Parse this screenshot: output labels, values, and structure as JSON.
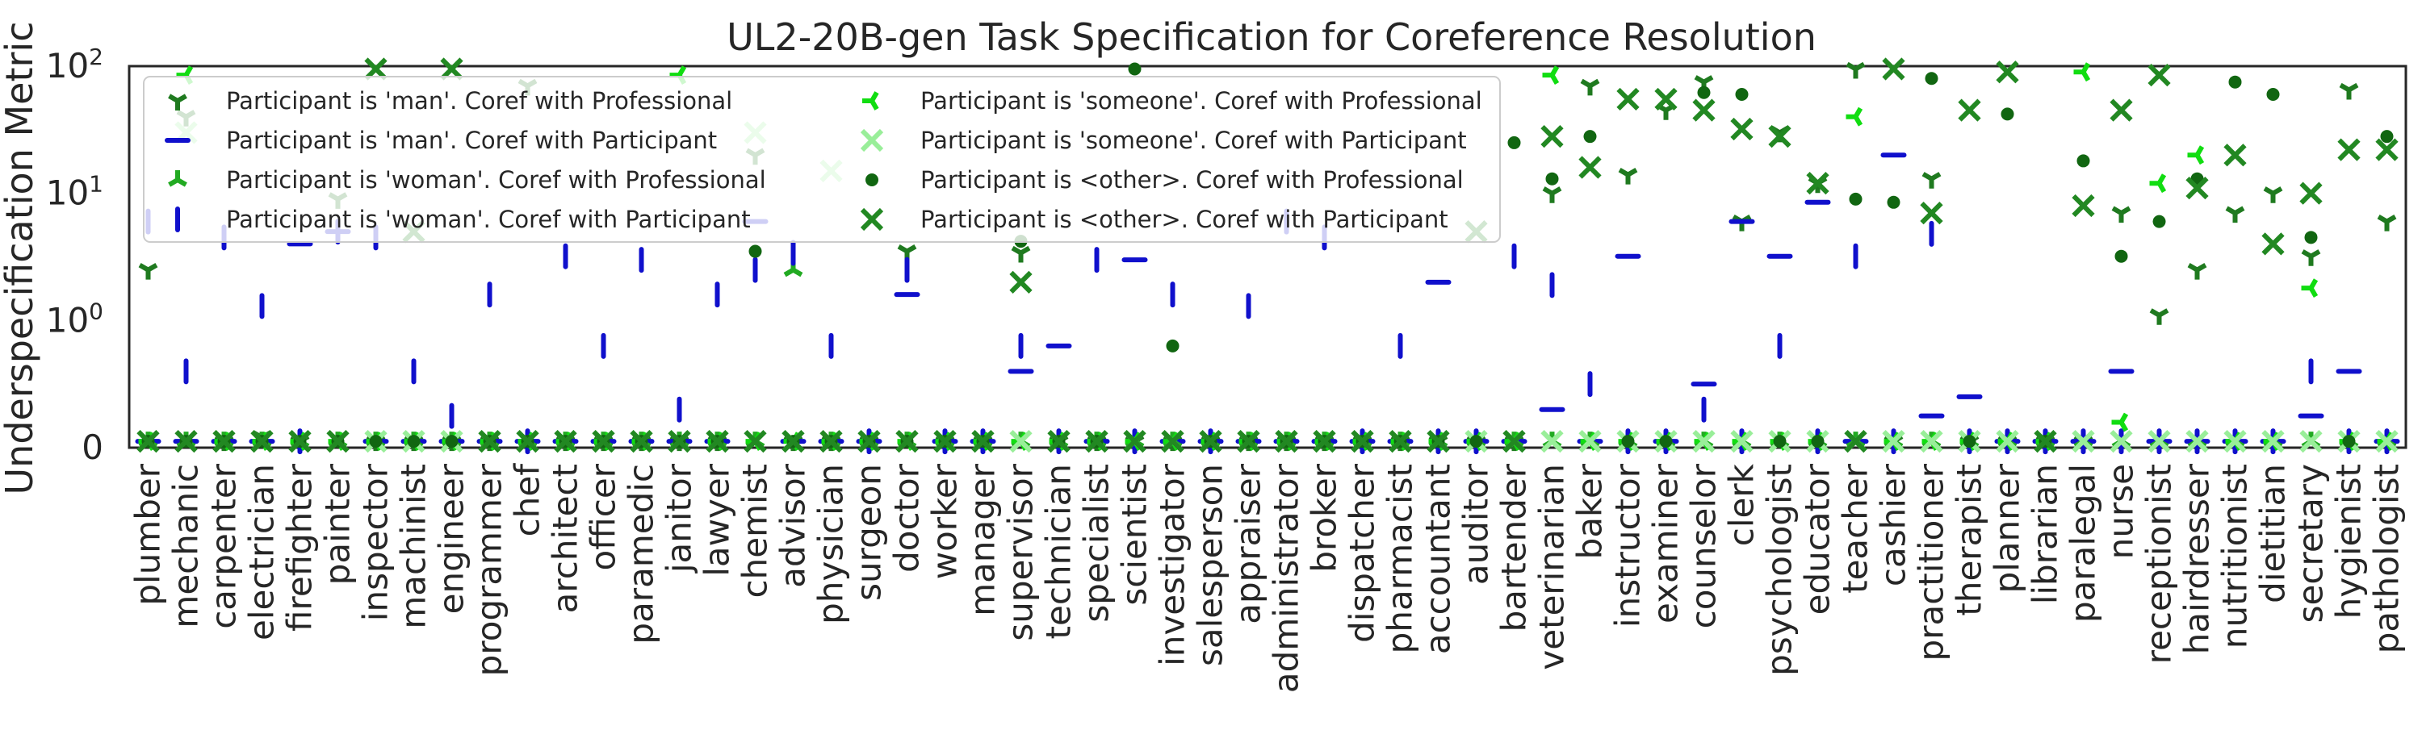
{
  "chart_data": {
    "type": "scatter",
    "title": "UL2-20B-gen Task Specification for Coreference Resolution",
    "xlabel": "",
    "ylabel": "Underspecification Metric",
    "yscale": "symlog",
    "ylim": [
      0,
      100
    ],
    "yticks": [
      0,
      1,
      10,
      100
    ],
    "ytick_labels": [
      {
        "base": "0",
        "exp": ""
      },
      {
        "base": "10",
        "exp": "0"
      },
      {
        "base": "10",
        "exp": "1"
      },
      {
        "base": "10",
        "exp": "2"
      }
    ],
    "grid": false,
    "legend_position": "upper-left",
    "categories": [
      "plumber",
      "mechanic",
      "carpenter",
      "electrician",
      "firefighter",
      "painter",
      "inspector",
      "machinist",
      "engineer",
      "programmer",
      "chef",
      "architect",
      "officer",
      "paramedic",
      "janitor",
      "lawyer",
      "chemist",
      "advisor",
      "physician",
      "surgeon",
      "doctor",
      "worker",
      "manager",
      "supervisor",
      "technician",
      "specialist",
      "scientist",
      "investigator",
      "salesperson",
      "appraiser",
      "administrator",
      "broker",
      "dispatcher",
      "pharmacist",
      "accountant",
      "auditor",
      "bartender",
      "veterinarian",
      "baker",
      "instructor",
      "examiner",
      "counselor",
      "clerk",
      "psychologist",
      "educator",
      "teacher",
      "cashier",
      "practitioner",
      "therapist",
      "planner",
      "librarian",
      "paralegal",
      "nurse",
      "receptionist",
      "hairdresser",
      "nutritionist",
      "dietitian",
      "secretary",
      "hygienist",
      "pathologist"
    ],
    "series": [
      {
        "name": "Participant is 'man'. Coref with Professional",
        "marker": "tri-down",
        "color": "#1f7a1f",
        "values": [
          2.5,
          40,
          0.05,
          0.08,
          0.05,
          9,
          0.05,
          0.05,
          0.05,
          0.05,
          70,
          0.05,
          0.05,
          0.05,
          0.05,
          0.05,
          20,
          0.05,
          0.05,
          0.05,
          3.5,
          0.05,
          0.05,
          3.4,
          0.05,
          0.05,
          0.05,
          0.05,
          0.05,
          0.05,
          0.05,
          0.05,
          0.05,
          0.05,
          0.05,
          0.05,
          0.05,
          10,
          70,
          14,
          45,
          75,
          6,
          30,
          12,
          95,
          0.05,
          13,
          0.05,
          0.05,
          0.05,
          0.05,
          7,
          1.1,
          2.5,
          7,
          10,
          3.2,
          65,
          6
        ]
      },
      {
        "name": "Participant is 'man'. Coref with Participant",
        "marker": "hline",
        "color": "#1010cc",
        "values": [
          0.05,
          0.05,
          0.05,
          0.05,
          4,
          5,
          0.05,
          0.05,
          0.05,
          0.05,
          0.05,
          0.05,
          0.05,
          0.05,
          0.05,
          0.05,
          6,
          0.05,
          0.05,
          0.05,
          1.6,
          0.05,
          0.05,
          0.6,
          0.8,
          0.05,
          3,
          0.05,
          0.05,
          0.05,
          0.05,
          0.05,
          0.05,
          0.05,
          2,
          0.05,
          0.05,
          0.3,
          0.05,
          3.2,
          0.05,
          0.5,
          6,
          3.2,
          8.5,
          0.05,
          20,
          0.25,
          0.4,
          0.05,
          0.05,
          0.05,
          0.6,
          0.05,
          0.05,
          0.05,
          0.05,
          0.25,
          0.6,
          0.05
        ]
      },
      {
        "name": "Participant is 'woman'. Coref with Professional",
        "marker": "tri-up",
        "color": "#22aa22",
        "values": [
          0.05,
          0.05,
          0.05,
          0.05,
          0.05,
          0.05,
          0.05,
          0.05,
          0.05,
          0.05,
          0.05,
          0.05,
          0.05,
          0.05,
          0.05,
          0.05,
          0.05,
          2.5,
          0.05,
          0.05,
          0.05,
          0.05,
          0.05,
          0.05,
          0.05,
          0.05,
          0.05,
          0.05,
          0.05,
          0.05,
          0.05,
          0.05,
          0.05,
          0.05,
          0.05,
          0.05,
          0.05,
          0.05,
          0.05,
          0.05,
          0.05,
          0.05,
          0.05,
          0.05,
          0.05,
          0.05,
          0.05,
          0.05,
          0.05,
          0.05,
          0.05,
          0.05,
          0.05,
          0.05,
          0.05,
          0.05,
          0.05,
          0.05,
          0.05,
          0.05
        ]
      },
      {
        "name": "Participant is 'woman'. Coref with Participant",
        "marker": "vline",
        "color": "#1010cc",
        "values": [
          6,
          0.6,
          4.5,
          1.3,
          0.05,
          5,
          4.5,
          0.6,
          0.25,
          1.6,
          0.05,
          3.2,
          0.8,
          3,
          0.3,
          1.6,
          2.5,
          3.4,
          0.8,
          0.05,
          2.5,
          0.05,
          0.05,
          0.8,
          0.05,
          3,
          0.05,
          1.6,
          0.05,
          1.3,
          6,
          4.5,
          0.05,
          0.8,
          0.05,
          0.05,
          3.2,
          1.9,
          0.5,
          0.05,
          0.05,
          0.3,
          0.05,
          0.8,
          0.05,
          3.2,
          0.05,
          4.8,
          0.05,
          0.05,
          0.05,
          0.05,
          0.05,
          0.05,
          0.05,
          0.05,
          0.05,
          0.6,
          0.05,
          0.05
        ]
      },
      {
        "name": "Participant is 'someone'. Coref with Professional",
        "marker": "tri-left",
        "color": "#11dd11",
        "values": [
          0.05,
          85,
          0.05,
          0.05,
          0.05,
          0.05,
          0.05,
          0.05,
          0.05,
          0.05,
          0.05,
          0.05,
          0.05,
          0.05,
          85,
          0.05,
          0.05,
          0.05,
          0.05,
          0.05,
          0.05,
          0.05,
          0.05,
          0.05,
          0.05,
          0.05,
          0.05,
          0.05,
          0.05,
          0.05,
          0.05,
          0.05,
          0.05,
          0.05,
          0.05,
          0.05,
          0.05,
          85,
          0.05,
          0.05,
          0.05,
          0.05,
          0.05,
          0.05,
          0.05,
          40,
          0.05,
          0.05,
          0.05,
          0.05,
          0.05,
          90,
          0.2,
          12,
          20,
          0.05,
          0.05,
          1.8,
          0.05,
          0.05
        ]
      },
      {
        "name": "Participant is 'someone'. Coref with Participant",
        "marker": "x",
        "color": "#99ee99",
        "values": [
          0.05,
          30,
          0.05,
          0.05,
          0.05,
          0.05,
          0.05,
          0.05,
          0.05,
          0.05,
          0.05,
          0.05,
          0.05,
          0.05,
          0.05,
          0.05,
          30,
          0.05,
          15,
          0.05,
          0.05,
          0.05,
          0.05,
          0.05,
          0.05,
          0.05,
          0.05,
          0.05,
          0.05,
          0.05,
          0.05,
          0.05,
          0.05,
          0.05,
          0.05,
          0.05,
          0.05,
          0.05,
          0.05,
          0.05,
          0.05,
          0.05,
          0.05,
          0.05,
          0.05,
          0.05,
          0.05,
          0.05,
          0.05,
          0.05,
          0.05,
          0.05,
          0.05,
          0.05,
          0.05,
          0.05,
          0.05,
          0.05,
          0.05,
          0.05
        ]
      },
      {
        "name": "Participant is <other>. Coref with Professional",
        "marker": "circle",
        "color": "#116611",
        "values": [
          0.05,
          0.05,
          0.05,
          0.05,
          0.05,
          0.05,
          0.05,
          0.05,
          0.05,
          0.05,
          0.05,
          0.05,
          0.05,
          0.05,
          0.05,
          0.05,
          3.5,
          0.05,
          0.05,
          0.05,
          0.05,
          0.05,
          0.05,
          4.2,
          0.05,
          0.05,
          95,
          0.8,
          0.05,
          0.05,
          0.05,
          0.05,
          0.05,
          0.05,
          0.05,
          0.05,
          25,
          13,
          28,
          0.05,
          0.05,
          62,
          60,
          0.05,
          0.05,
          9,
          8.5,
          80,
          0.05,
          42,
          0.05,
          18,
          3.2,
          6,
          13,
          75,
          60,
          4.5,
          0.05,
          28
        ]
      },
      {
        "name": "Participant is <other>. Coref with Participant",
        "marker": "x",
        "color": "#228822",
        "values": [
          0.05,
          0.05,
          0.05,
          0.05,
          0.05,
          0.05,
          95,
          5,
          95,
          0.05,
          0.05,
          0.05,
          0.05,
          0.05,
          0.05,
          0.05,
          0.05,
          0.05,
          0.05,
          0.05,
          0.05,
          0.05,
          0.05,
          2,
          0.05,
          0.05,
          0.05,
          0.05,
          0.05,
          0.05,
          0.05,
          0.05,
          0.05,
          0.05,
          0.05,
          5,
          0.05,
          28,
          16,
          55,
          55,
          45,
          32,
          28,
          12,
          0.05,
          95,
          7,
          45,
          90,
          0.05,
          8,
          45,
          85,
          11,
          20,
          4,
          10,
          22,
          22
        ]
      }
    ]
  }
}
